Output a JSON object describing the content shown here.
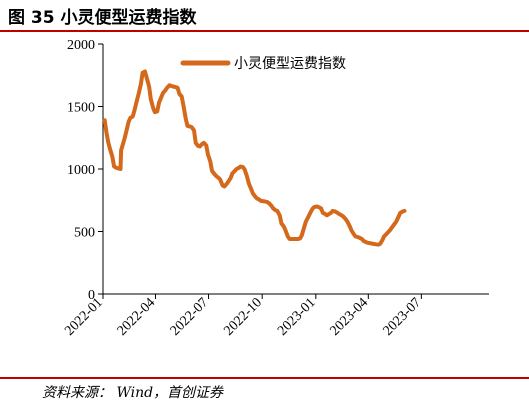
{
  "figure": {
    "title": "图 35 小灵便型运费指数",
    "source": "资料来源： Wind，首创证券"
  },
  "colors": {
    "line": "#d4691b",
    "rule": "#c00000",
    "axis": "#000000"
  },
  "chart_data": {
    "type": "line",
    "title": "",
    "xlabel": "",
    "ylabel": "",
    "ylim": [
      0,
      2000
    ],
    "yticks": [
      0,
      500,
      1000,
      1500,
      2000
    ],
    "xlim": [
      "2022-01-01",
      "2023-10-25"
    ],
    "xticks": [
      "2022-01",
      "2022-04",
      "2022-07",
      "2022-10",
      "2023-01",
      "2023-04",
      "2023-07"
    ],
    "grid": false,
    "legend_position": "top-center",
    "series": [
      {
        "name": "小灵便型运费指数",
        "points": [
          [
            "2022-01-04",
            1390
          ],
          [
            "2022-01-07",
            1290
          ],
          [
            "2022-01-10",
            1215
          ],
          [
            "2022-01-13",
            1160
          ],
          [
            "2022-01-17",
            1100
          ],
          [
            "2022-01-20",
            1020
          ],
          [
            "2022-01-24",
            1010
          ],
          [
            "2022-01-27",
            1005
          ],
          [
            "2022-01-31",
            1000
          ],
          [
            "2022-02-01",
            1150
          ],
          [
            "2022-02-07",
            1245
          ],
          [
            "2022-02-10",
            1300
          ],
          [
            "2022-02-14",
            1380
          ],
          [
            "2022-02-17",
            1410
          ],
          [
            "2022-02-21",
            1420
          ],
          [
            "2022-02-24",
            1470
          ],
          [
            "2022-02-28",
            1545
          ],
          [
            "2022-03-03",
            1600
          ],
          [
            "2022-03-07",
            1680
          ],
          [
            "2022-03-10",
            1770
          ],
          [
            "2022-03-14",
            1780
          ],
          [
            "2022-03-17",
            1730
          ],
          [
            "2022-03-21",
            1660
          ],
          [
            "2022-03-24",
            1560
          ],
          [
            "2022-03-28",
            1490
          ],
          [
            "2022-03-31",
            1455
          ],
          [
            "2022-04-04",
            1460
          ],
          [
            "2022-04-07",
            1530
          ],
          [
            "2022-04-11",
            1575
          ],
          [
            "2022-04-14",
            1610
          ],
          [
            "2022-04-18",
            1630
          ],
          [
            "2022-04-21",
            1650
          ],
          [
            "2022-04-25",
            1670
          ],
          [
            "2022-04-28",
            1665
          ],
          [
            "2022-05-05",
            1655
          ],
          [
            "2022-05-09",
            1650
          ],
          [
            "2022-05-12",
            1600
          ],
          [
            "2022-05-16",
            1580
          ],
          [
            "2022-05-19",
            1505
          ],
          [
            "2022-05-23",
            1400
          ],
          [
            "2022-05-26",
            1345
          ],
          [
            "2022-05-30",
            1340
          ],
          [
            "2022-06-02",
            1335
          ],
          [
            "2022-06-06",
            1310
          ],
          [
            "2022-06-09",
            1210
          ],
          [
            "2022-06-13",
            1185
          ],
          [
            "2022-06-16",
            1180
          ],
          [
            "2022-06-20",
            1200
          ],
          [
            "2022-06-23",
            1210
          ],
          [
            "2022-06-27",
            1190
          ],
          [
            "2022-06-30",
            1115
          ],
          [
            "2022-07-04",
            1060
          ],
          [
            "2022-07-07",
            985
          ],
          [
            "2022-07-11",
            960
          ],
          [
            "2022-07-14",
            945
          ],
          [
            "2022-07-18",
            930
          ],
          [
            "2022-07-21",
            915
          ],
          [
            "2022-07-25",
            870
          ],
          [
            "2022-07-28",
            860
          ],
          [
            "2022-08-01",
            880
          ],
          [
            "2022-08-04",
            900
          ],
          [
            "2022-08-08",
            930
          ],
          [
            "2022-08-11",
            965
          ],
          [
            "2022-08-15",
            985
          ],
          [
            "2022-08-18",
            1000
          ],
          [
            "2022-08-22",
            1010
          ],
          [
            "2022-08-25",
            1020
          ],
          [
            "2022-08-29",
            1015
          ],
          [
            "2022-09-01",
            995
          ],
          [
            "2022-09-05",
            940
          ],
          [
            "2022-09-08",
            885
          ],
          [
            "2022-09-12",
            840
          ],
          [
            "2022-09-15",
            805
          ],
          [
            "2022-09-19",
            780
          ],
          [
            "2022-09-22",
            765
          ],
          [
            "2022-09-26",
            755
          ],
          [
            "2022-09-29",
            745
          ],
          [
            "2022-10-06",
            740
          ],
          [
            "2022-10-10",
            735
          ],
          [
            "2022-10-13",
            725
          ],
          [
            "2022-10-17",
            705
          ],
          [
            "2022-10-20",
            685
          ],
          [
            "2022-10-24",
            670
          ],
          [
            "2022-10-27",
            665
          ],
          [
            "2022-10-31",
            630
          ],
          [
            "2022-11-03",
            565
          ],
          [
            "2022-11-07",
            540
          ],
          [
            "2022-11-10",
            510
          ],
          [
            "2022-11-14",
            460
          ],
          [
            "2022-11-17",
            440
          ],
          [
            "2022-11-21",
            440
          ],
          [
            "2022-11-24",
            440
          ],
          [
            "2022-11-28",
            440
          ],
          [
            "2022-12-01",
            440
          ],
          [
            "2022-12-05",
            445
          ],
          [
            "2022-12-08",
            470
          ],
          [
            "2022-12-12",
            535
          ],
          [
            "2022-12-15",
            580
          ],
          [
            "2022-12-19",
            615
          ],
          [
            "2022-12-22",
            645
          ],
          [
            "2022-12-26",
            680
          ],
          [
            "2022-12-29",
            695
          ],
          [
            "2023-01-03",
            700
          ],
          [
            "2023-01-06",
            695
          ],
          [
            "2023-01-10",
            685
          ],
          [
            "2023-01-13",
            650
          ],
          [
            "2023-01-17",
            640
          ],
          [
            "2023-01-20",
            630
          ],
          [
            "2023-01-27",
            650
          ],
          [
            "2023-01-30",
            665
          ],
          [
            "2023-02-03",
            660
          ],
          [
            "2023-02-07",
            650
          ],
          [
            "2023-02-10",
            640
          ],
          [
            "2023-02-14",
            630
          ],
          [
            "2023-02-17",
            620
          ],
          [
            "2023-02-21",
            600
          ],
          [
            "2023-02-24",
            580
          ],
          [
            "2023-02-28",
            545
          ],
          [
            "2023-03-03",
            510
          ],
          [
            "2023-03-07",
            480
          ],
          [
            "2023-03-10",
            460
          ],
          [
            "2023-03-14",
            455
          ],
          [
            "2023-03-17",
            450
          ],
          [
            "2023-03-21",
            440
          ],
          [
            "2023-03-24",
            425
          ],
          [
            "2023-03-28",
            415
          ],
          [
            "2023-03-31",
            410
          ],
          [
            "2023-04-06",
            405
          ],
          [
            "2023-04-11",
            400
          ],
          [
            "2023-04-14",
            398
          ],
          [
            "2023-04-18",
            395
          ],
          [
            "2023-04-21",
            400
          ],
          [
            "2023-04-25",
            430
          ],
          [
            "2023-04-28",
            460
          ],
          [
            "2023-05-03",
            485
          ],
          [
            "2023-05-08",
            510
          ],
          [
            "2023-05-12",
            535
          ],
          [
            "2023-05-16",
            560
          ],
          [
            "2023-05-19",
            580
          ],
          [
            "2023-05-23",
            620
          ],
          [
            "2023-05-26",
            650
          ],
          [
            "2023-05-30",
            660
          ],
          [
            "2023-06-02",
            665
          ]
        ]
      }
    ]
  }
}
